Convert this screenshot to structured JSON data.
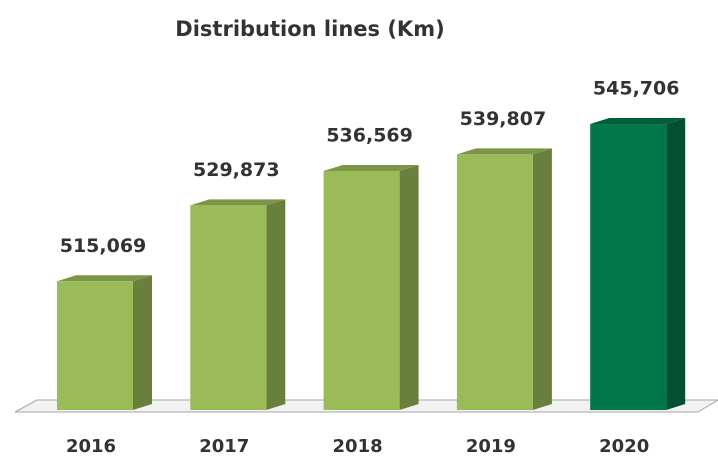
{
  "chart_data": {
    "type": "bar3d",
    "title": "Distribution lines (Km)",
    "categories": [
      "2016",
      "2017",
      "2018",
      "2019",
      "2020"
    ],
    "values": [
      515069,
      529873,
      536569,
      539807,
      545706
    ],
    "value_labels": [
      "515,069",
      "529,873",
      "536,569",
      "539,807",
      "545,706"
    ],
    "colors": [
      "#9bbb59",
      "#9bbb59",
      "#9bbb59",
      "#9bbb59",
      "#00774a"
    ],
    "ylim": [
      490000,
      550000
    ]
  }
}
